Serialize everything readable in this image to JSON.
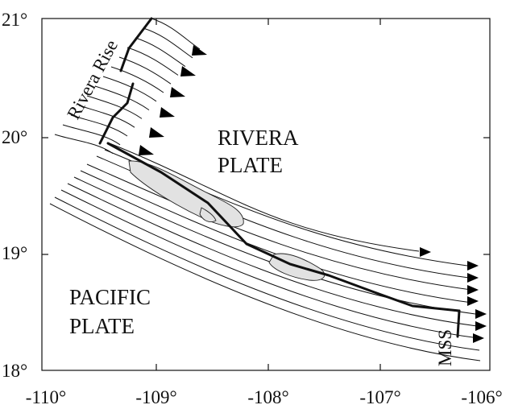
{
  "map": {
    "x_ticks": [
      -110,
      -109,
      -108,
      -107,
      -106
    ],
    "y_ticks": [
      18,
      19,
      20,
      21
    ],
    "x_tick_labels": [
      "-110°",
      "-109°",
      "-108°",
      "-107°",
      "-106°"
    ],
    "y_tick_labels": [
      "18°",
      "19°",
      "20°",
      "21°"
    ],
    "xlim": [
      -110,
      -106
    ],
    "ylim": [
      18,
      21
    ],
    "labels": {
      "rivera_plate_line1": "RIVERA",
      "rivera_plate_line2": "PLATE",
      "pacific_plate_line1": "PACIFIC",
      "pacific_plate_line2": "PLATE",
      "rivera_rise": "Rivera Rise",
      "mss": "MSS"
    }
  }
}
